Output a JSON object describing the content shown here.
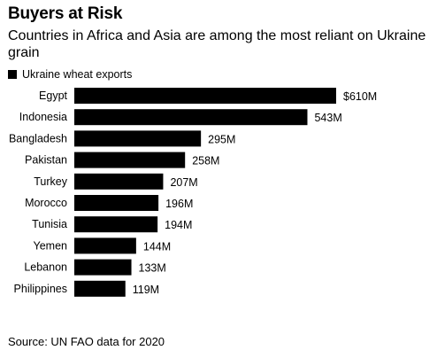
{
  "header": {
    "title": "Buyers at Risk",
    "subtitle": "Countries in Africa and Asia are among the most reliant on Ukraine grain"
  },
  "legend": {
    "label": "Ukraine wheat exports",
    "color": "#000000"
  },
  "footer": {
    "source": "Source: UN FAO data for 2020"
  },
  "chart_data": {
    "type": "bar",
    "orientation": "horizontal",
    "title": "Buyers at Risk",
    "subtitle": "Countries in Africa and Asia are among the most reliant on Ukraine grain",
    "categories": [
      "Egypt",
      "Indonesia",
      "Bangladesh",
      "Pakistan",
      "Turkey",
      "Morocco",
      "Tunisia",
      "Yemen",
      "Lebanon",
      "Philippines"
    ],
    "series": [
      {
        "name": "Ukraine wheat exports",
        "color": "#000000",
        "values": [
          610,
          543,
          295,
          258,
          207,
          196,
          194,
          144,
          133,
          119
        ],
        "labels": [
          "$610M",
          "543M",
          "295M",
          "258M",
          "207M",
          "196M",
          "194M",
          "144M",
          "133M",
          "119M"
        ]
      }
    ],
    "unit": "millions of US dollars",
    "xlim": [
      0,
      610
    ],
    "grid": false,
    "legend_position": "top-left"
  }
}
